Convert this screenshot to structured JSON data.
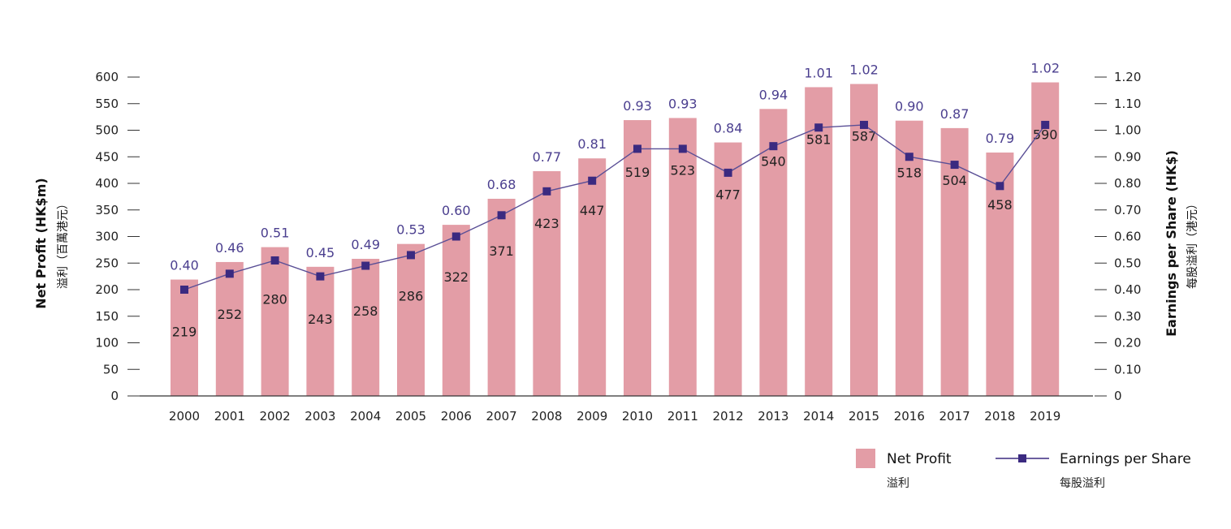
{
  "chart_data": {
    "type": "bar",
    "categories": [
      "2000",
      "2001",
      "2002",
      "2003",
      "2004",
      "2005",
      "2006",
      "2007",
      "2008",
      "2009",
      "2010",
      "2011",
      "2012",
      "2013",
      "2014",
      "2015",
      "2016",
      "2017",
      "2018",
      "2019"
    ],
    "series": [
      {
        "name": "Net Profit",
        "name_sub": "溢利",
        "type": "bar",
        "axis": "left",
        "color": "#e39da6",
        "values": [
          219,
          252,
          280,
          243,
          258,
          286,
          322,
          371,
          423,
          447,
          519,
          523,
          477,
          540,
          581,
          587,
          518,
          504,
          458,
          590
        ]
      },
      {
        "name": "Earnings per Share",
        "name_sub": "每股溢利",
        "type": "line",
        "axis": "right",
        "color": "#3b2a80",
        "values": [
          0.4,
          0.46,
          0.51,
          0.45,
          0.49,
          0.53,
          0.6,
          0.68,
          0.77,
          0.81,
          0.93,
          0.93,
          0.84,
          0.94,
          1.01,
          1.02,
          0.9,
          0.87,
          0.79,
          1.02
        ],
        "labels": [
          "0.40",
          "0.46",
          "0.51",
          "0.45",
          "0.49",
          "0.53",
          "0.60",
          "0.68",
          "0.77",
          "0.81",
          "0.93",
          "0.93",
          "0.84",
          "0.94",
          "1.01",
          "1.02",
          "0.90",
          "0.87",
          "0.79",
          "1.02"
        ]
      }
    ],
    "y_left": {
      "title": "Net Profit (HK$m)",
      "subtitle": "溢利（百萬港元）",
      "lim": [
        0,
        600
      ],
      "ticks": [
        "0",
        "50",
        "100",
        "150",
        "200",
        "250",
        "300",
        "350",
        "400",
        "450",
        "500",
        "550",
        "600"
      ]
    },
    "y_right": {
      "title": "Earnings per Share (HK$)",
      "subtitle": "每股溢利（港元）",
      "lim": [
        0,
        1.2
      ],
      "ticks": [
        "0",
        "0.10",
        "0.20",
        "0.30",
        "0.40",
        "0.50",
        "0.60",
        "0.70",
        "0.80",
        "0.90",
        "1.00",
        "1.10",
        "1.20"
      ]
    },
    "grid": false,
    "legend_position": "bottom-right"
  }
}
